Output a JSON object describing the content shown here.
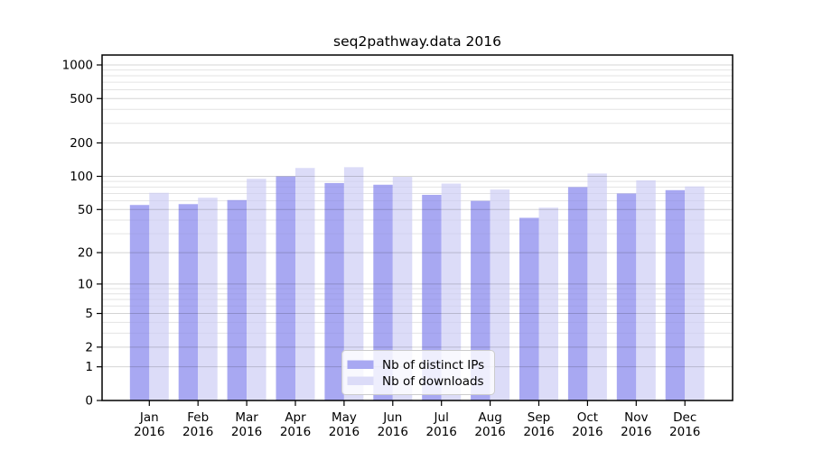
{
  "chart_data": {
    "type": "bar",
    "title": "seq2pathway.data 2016",
    "categories": [
      "Jan",
      "Feb",
      "Mar",
      "Apr",
      "May",
      "Jun",
      "Jul",
      "Aug",
      "Sep",
      "Oct",
      "Nov",
      "Dec"
    ],
    "category_year": "2016",
    "series": [
      {
        "name": "Nb of distinct IPs",
        "color": "#a8a8f2",
        "values": [
          55,
          56,
          61,
          100,
          87,
          84,
          68,
          60,
          42,
          80,
          70,
          75
        ]
      },
      {
        "name": "Nb of downloads",
        "color": "#dcdcf8",
        "values": [
          71,
          64,
          95,
          119,
          121,
          99,
          86,
          76,
          52,
          106,
          92,
          81
        ]
      }
    ],
    "y_axis": {
      "scale": "log1p",
      "ticks": [
        0,
        1,
        2,
        5,
        10,
        20,
        50,
        100,
        200,
        500,
        1000
      ],
      "minor_gridlines": [
        3,
        4,
        6,
        7,
        8,
        9,
        30,
        40,
        60,
        70,
        80,
        90,
        300,
        400,
        600,
        700,
        800,
        900
      ]
    },
    "legend": {
      "position": "lower center"
    },
    "colors": {
      "background": "#ffffff",
      "frame": "#000000",
      "major_grid": "rgba(0,0,0,0.17)",
      "minor_grid": "rgba(0,0,0,0.07)",
      "legend_border": "#cccccc",
      "legend_background": "rgba(255,255,255,0.8)"
    }
  }
}
